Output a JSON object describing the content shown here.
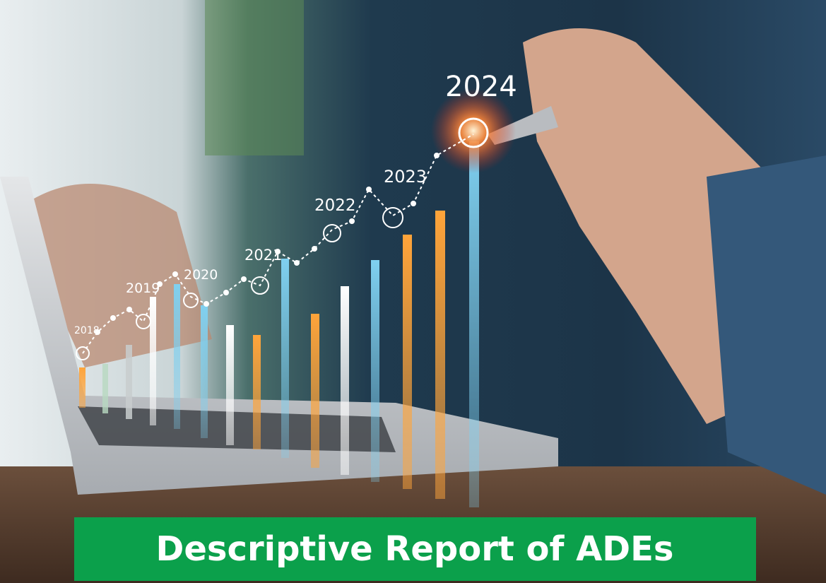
{
  "image": {
    "years": [
      "2018",
      "2019",
      "2020",
      "2021",
      "2022",
      "2023",
      "2024"
    ]
  },
  "banner": {
    "title": "Descriptive Report of ADEs"
  }
}
